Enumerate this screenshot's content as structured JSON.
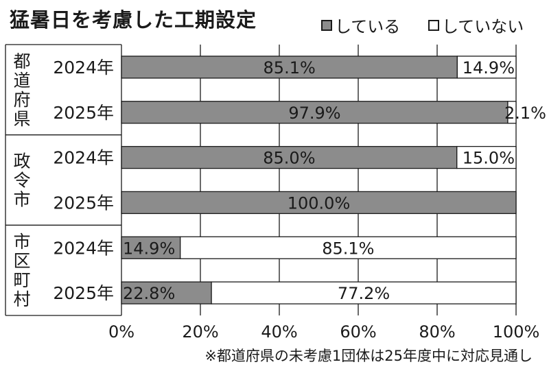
{
  "title": "猛暑日を考慮した工期設定",
  "legend": [
    {
      "label": "している",
      "color": "#8c8c8c"
    },
    {
      "label": "していない",
      "color": "#ffffff"
    }
  ],
  "footnote": "※都道府県の未考慮1団体は25年度中に対応見通し",
  "chart_data": {
    "type": "bar",
    "orientation": "horizontal",
    "stacked": true,
    "title": "猛暑日を考慮した工期設定",
    "groups": [
      {
        "name": "都道府県",
        "rows": [
          "2024年",
          "2025年"
        ]
      },
      {
        "name": "政令市",
        "rows": [
          "2024年",
          "2025年"
        ]
      },
      {
        "name": "市区町村",
        "rows": [
          "2024年",
          "2025年"
        ]
      }
    ],
    "categories": [
      "2024年",
      "2025年",
      "2024年",
      "2025年",
      "2024年",
      "2025年"
    ],
    "series": [
      {
        "name": "している",
        "values": [
          85.1,
          97.9,
          85.0,
          100.0,
          14.9,
          22.8
        ],
        "labels": [
          "85.1%",
          "97.9%",
          "85.0%",
          "100.0%",
          "14.9%",
          "22.8%"
        ]
      },
      {
        "name": "していない",
        "values": [
          14.9,
          2.1,
          15.0,
          0,
          85.1,
          77.2
        ],
        "labels": [
          "14.9%",
          "2.1%",
          "15.0%",
          "",
          "85.1%",
          "77.2%"
        ]
      }
    ],
    "xlim": [
      0,
      100
    ],
    "xticks": [
      0,
      20,
      40,
      60,
      80,
      100
    ],
    "xtick_labels": [
      "0%",
      "20%",
      "40%",
      "60%",
      "80%",
      "100%"
    ],
    "grid": true,
    "legend_position": "top-right",
    "colors": {
      "done": "#8c8c8c",
      "not_done": "#ffffff",
      "grid": "#1a1a1a"
    }
  }
}
